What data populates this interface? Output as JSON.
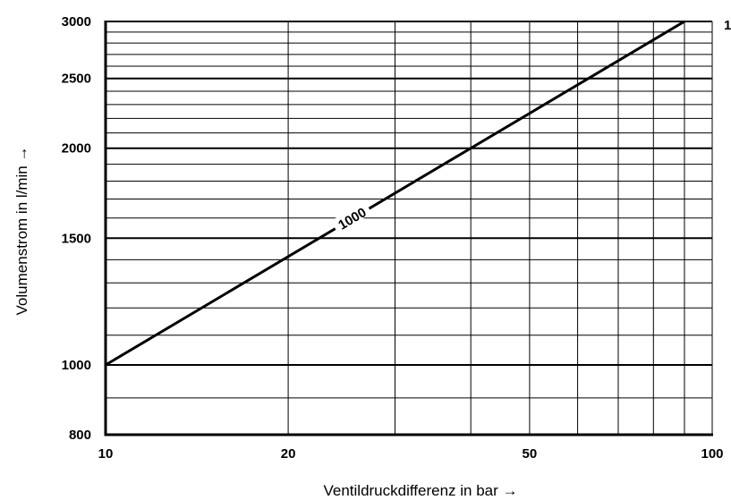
{
  "chart_data": {
    "type": "line",
    "xlabel": "Ventildruckdifferenz in bar →",
    "ylabel": "Volumenstrom in l/min →",
    "x_scale": "log",
    "y_scale": "log",
    "xlim": [
      10,
      100
    ],
    "ylim": [
      800,
      3000
    ],
    "x_ticks": [
      10,
      20,
      50,
      100
    ],
    "y_ticks": [
      800,
      1000,
      1500,
      2000,
      2500,
      3000
    ],
    "x_grid": [
      10,
      20,
      30,
      40,
      50,
      60,
      70,
      80,
      90,
      100
    ],
    "y_grid_major": [
      1000,
      1500,
      2000,
      2500,
      3000
    ],
    "y_grid_minor": [
      900,
      1100,
      1200,
      1300,
      1400,
      1600,
      1700,
      1800,
      1900,
      2100,
      2200,
      2300,
      2400,
      2600,
      2700,
      2800,
      2900
    ],
    "grid": true,
    "series": [
      {
        "name": "1000",
        "x": [
          10,
          90
        ],
        "y": [
          1000,
          3000
        ]
      }
    ],
    "truncated_label": "1"
  }
}
